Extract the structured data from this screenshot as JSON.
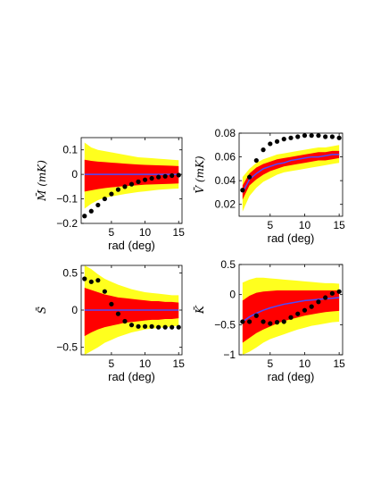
{
  "chart_data": [
    {
      "type": "line",
      "title": "",
      "xlabel": "rad (deg)",
      "ylabel": "M̄ (mK)",
      "xlim": [
        0.5,
        15.5
      ],
      "ylim": [
        -0.2,
        0.15
      ],
      "xticks": [
        5,
        10,
        15
      ],
      "yticks": [
        -0.2,
        -0.1,
        0,
        0.1
      ],
      "ytick_labels": [
        "−0.2",
        "−0.1",
        "0",
        "0.1"
      ],
      "x": [
        1,
        2,
        3,
        4,
        5,
        6,
        7,
        8,
        9,
        10,
        11,
        12,
        13,
        14,
        15
      ],
      "series": [
        {
          "role": "band-outer",
          "upper": [
            0.13,
            0.11,
            0.1,
            0.095,
            0.09,
            0.085,
            0.08,
            0.075,
            0.07,
            0.068,
            0.066,
            0.064,
            0.062,
            0.06,
            0.058
          ],
          "lower": [
            -0.14,
            -0.12,
            -0.105,
            -0.095,
            -0.09,
            -0.085,
            -0.08,
            -0.076,
            -0.072,
            -0.069,
            -0.066,
            -0.063,
            -0.061,
            -0.059,
            -0.058
          ]
        },
        {
          "role": "band-inner",
          "upper": [
            0.06,
            0.055,
            0.052,
            0.05,
            0.048,
            0.046,
            0.044,
            0.042,
            0.04,
            0.039,
            0.038,
            0.037,
            0.036,
            0.035,
            0.034
          ],
          "lower": [
            -0.07,
            -0.065,
            -0.06,
            -0.056,
            -0.053,
            -0.05,
            -0.048,
            -0.046,
            -0.044,
            -0.042,
            -0.041,
            -0.04,
            -0.039,
            -0.038,
            -0.037
          ]
        },
        {
          "role": "mean",
          "values": [
            0,
            0,
            0,
            0,
            0,
            0,
            0,
            0,
            0,
            0,
            0,
            0,
            0,
            0,
            0
          ]
        },
        {
          "role": "points",
          "values": [
            -0.17,
            -0.15,
            -0.125,
            -0.1,
            -0.08,
            -0.062,
            -0.05,
            -0.04,
            -0.03,
            -0.022,
            -0.016,
            -0.011,
            -0.008,
            -0.005,
            -0.003
          ]
        }
      ]
    },
    {
      "type": "line",
      "title": "",
      "xlabel": "rad (deg)",
      "ylabel": "V̄ (mK)",
      "xlim": [
        0.5,
        15.5
      ],
      "ylim": [
        0.01,
        0.08
      ],
      "xticks": [
        5,
        10,
        15
      ],
      "yticks": [
        0.02,
        0.04,
        0.06,
        0.08
      ],
      "ytick_labels": [
        "0.02",
        "0.04",
        "0.06",
        "0.08"
      ],
      "x": [
        1,
        2,
        3,
        4,
        5,
        6,
        7,
        8,
        9,
        10,
        11,
        12,
        13,
        14,
        15
      ],
      "series": [
        {
          "role": "band-outer",
          "upper": [
            0.043,
            0.05,
            0.055,
            0.058,
            0.06,
            0.062,
            0.063,
            0.064,
            0.065,
            0.066,
            0.067,
            0.068,
            0.068,
            0.069,
            0.07
          ],
          "lower": [
            0.014,
            0.027,
            0.034,
            0.039,
            0.042,
            0.045,
            0.047,
            0.048,
            0.049,
            0.05,
            0.051,
            0.052,
            0.053,
            0.054,
            0.055
          ]
        },
        {
          "role": "band-inner",
          "upper": [
            0.036,
            0.046,
            0.051,
            0.054,
            0.056,
            0.058,
            0.059,
            0.06,
            0.061,
            0.062,
            0.063,
            0.064,
            0.064,
            0.065,
            0.065
          ],
          "lower": [
            0.024,
            0.036,
            0.041,
            0.045,
            0.048,
            0.05,
            0.052,
            0.053,
            0.054,
            0.055,
            0.056,
            0.057,
            0.057,
            0.058,
            0.059
          ]
        },
        {
          "role": "mean",
          "values": [
            0.03,
            0.041,
            0.046,
            0.05,
            0.052,
            0.054,
            0.055,
            0.057,
            0.058,
            0.059,
            0.06,
            0.06,
            0.061,
            0.062,
            0.062
          ]
        },
        {
          "role": "points",
          "values": [
            0.032,
            0.043,
            0.057,
            0.066,
            0.071,
            0.073,
            0.075,
            0.076,
            0.077,
            0.078,
            0.078,
            0.078,
            0.077,
            0.077,
            0.076
          ]
        }
      ]
    },
    {
      "type": "line",
      "title": "",
      "xlabel": "rad (deg)",
      "ylabel": "S̄",
      "xlim": [
        0.5,
        15.5
      ],
      "ylim": [
        -0.6,
        0.6
      ],
      "xticks": [
        5,
        10,
        15
      ],
      "yticks": [
        -0.5,
        0,
        0.5
      ],
      "ytick_labels": [
        "−0.5",
        "0",
        "0.5"
      ],
      "x": [
        1,
        2,
        3,
        4,
        5,
        6,
        7,
        8,
        9,
        10,
        11,
        12,
        13,
        14,
        15
      ],
      "series": [
        {
          "role": "band-outer",
          "upper": [
            0.6,
            0.55,
            0.48,
            0.42,
            0.38,
            0.34,
            0.31,
            0.28,
            0.26,
            0.24,
            0.23,
            0.22,
            0.21,
            0.2,
            0.2
          ],
          "lower": [
            -0.6,
            -0.55,
            -0.5,
            -0.44,
            -0.4,
            -0.36,
            -0.33,
            -0.3,
            -0.28,
            -0.26,
            -0.25,
            -0.24,
            -0.23,
            -0.22,
            -0.21
          ]
        },
        {
          "role": "band-inner",
          "upper": [
            0.3,
            0.27,
            0.24,
            0.21,
            0.19,
            0.17,
            0.16,
            0.15,
            0.14,
            0.13,
            0.12,
            0.12,
            0.11,
            0.11,
            0.1
          ],
          "lower": [
            -0.35,
            -0.3,
            -0.26,
            -0.23,
            -0.21,
            -0.19,
            -0.17,
            -0.16,
            -0.15,
            -0.14,
            -0.13,
            -0.13,
            -0.12,
            -0.12,
            -0.11
          ]
        },
        {
          "role": "mean",
          "values": [
            0,
            0,
            0,
            0,
            0,
            0,
            0,
            0,
            0,
            0,
            0,
            0,
            0,
            0,
            0
          ]
        },
        {
          "role": "points",
          "values": [
            0.42,
            0.38,
            0.4,
            0.25,
            0.08,
            -0.05,
            -0.15,
            -0.2,
            -0.22,
            -0.22,
            -0.22,
            -0.23,
            -0.23,
            -0.23,
            -0.23
          ]
        }
      ]
    },
    {
      "type": "line",
      "title": "",
      "xlabel": "rad (deg)",
      "ylabel": "K̄",
      "xlim": [
        0.5,
        15.5
      ],
      "ylim": [
        -1,
        0.5
      ],
      "xticks": [
        5,
        10,
        15
      ],
      "yticks": [
        -1,
        -0.5,
        0,
        0.5
      ],
      "ytick_labels": [
        "−1",
        "−0.5",
        "0",
        "0.5"
      ],
      "x": [
        1,
        2,
        3,
        4,
        5,
        6,
        7,
        8,
        9,
        10,
        11,
        12,
        13,
        14,
        15
      ],
      "series": [
        {
          "role": "band-outer",
          "upper": [
            0.2,
            0.25,
            0.28,
            0.28,
            0.27,
            0.26,
            0.25,
            0.24,
            0.23,
            0.22,
            0.21,
            0.2,
            0.19,
            0.19,
            0.18
          ],
          "lower": [
            -1.0,
            -0.95,
            -0.88,
            -0.8,
            -0.74,
            -0.7,
            -0.66,
            -0.62,
            -0.58,
            -0.55,
            -0.52,
            -0.5,
            -0.48,
            -0.46,
            -0.45
          ]
        },
        {
          "role": "band-inner",
          "upper": [
            -0.1,
            -0.02,
            0.03,
            0.05,
            0.06,
            0.07,
            0.07,
            0.07,
            0.07,
            0.07,
            0.07,
            0.07,
            0.07,
            0.07,
            0.07
          ],
          "lower": [
            -0.8,
            -0.72,
            -0.64,
            -0.58,
            -0.53,
            -0.48,
            -0.44,
            -0.41,
            -0.38,
            -0.35,
            -0.33,
            -0.31,
            -0.29,
            -0.28,
            -0.27
          ]
        },
        {
          "role": "mean",
          "values": [
            -0.45,
            -0.37,
            -0.31,
            -0.26,
            -0.22,
            -0.19,
            -0.16,
            -0.14,
            -0.12,
            -0.1,
            -0.09,
            -0.08,
            -0.07,
            -0.06,
            -0.05
          ]
        },
        {
          "role": "points",
          "values": [
            -0.45,
            -0.45,
            -0.35,
            -0.45,
            -0.48,
            -0.46,
            -0.45,
            -0.38,
            -0.32,
            -0.26,
            -0.2,
            -0.12,
            -0.05,
            0.02,
            0.05
          ]
        }
      ]
    }
  ],
  "colors": {
    "band_outer": "#ffff1e",
    "band_inner": "#ff0000",
    "mean_line": "#4b4bff",
    "points": "#000000",
    "axes": "#000000",
    "background": "#ffffff"
  }
}
